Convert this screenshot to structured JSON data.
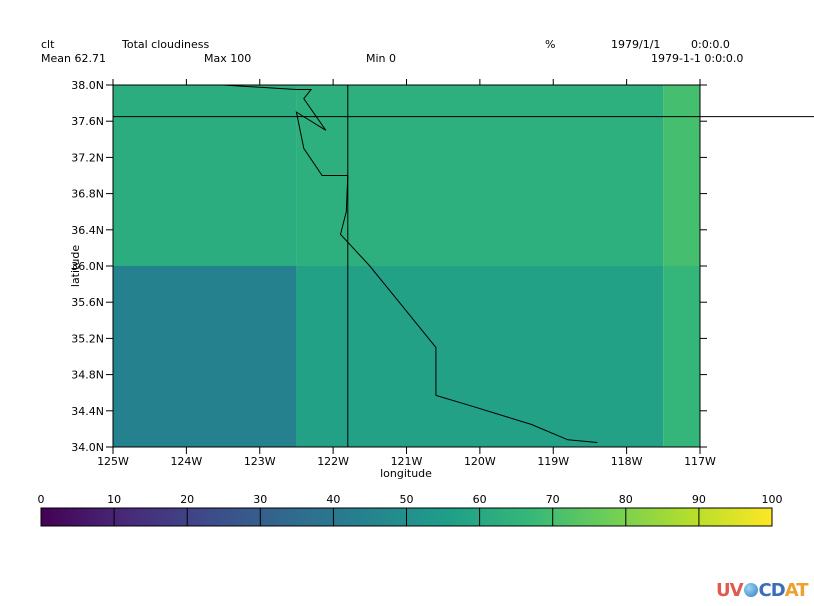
{
  "header": {
    "variable": "clt",
    "long_name": "Total cloudiness",
    "units": "%",
    "date": "1979/1/1",
    "time": "0:0:0.0",
    "datetime": "1979-1-1 0:0:0.0",
    "mean_label": "Mean 62.71",
    "max_label": "Max 100",
    "min_label": "Min 0"
  },
  "chart_data": {
    "type": "heatmap",
    "xlabel": "longitude",
    "ylabel": "latitude",
    "xlim": [
      -125,
      -117
    ],
    "ylim": [
      34,
      38
    ],
    "x_ticks": [
      -125,
      -124,
      -123,
      -122,
      -121,
      -120,
      -119,
      -118,
      -117
    ],
    "x_tick_labels": [
      "125W",
      "124W",
      "123W",
      "122W",
      "121W",
      "120W",
      "119W",
      "118W",
      "117W"
    ],
    "y_ticks": [
      34.0,
      34.4,
      34.8,
      35.2,
      35.6,
      36.0,
      36.4,
      36.8,
      37.2,
      37.6,
      38.0
    ],
    "y_tick_labels": [
      "34.0N",
      "34.4N",
      "34.8N",
      "35.2N",
      "35.6N",
      "36.0N",
      "36.4N",
      "36.8N",
      "37.2N",
      "37.6N",
      "38.0N"
    ],
    "cells": [
      {
        "lon": [
          -125,
          -122.5
        ],
        "lat": [
          34,
          36
        ],
        "value": 44
      },
      {
        "lon": [
          -122.5,
          -117.5
        ],
        "lat": [
          34,
          36
        ],
        "value": 57
      },
      {
        "lon": [
          -117.5,
          -117
        ],
        "lat": [
          34,
          36
        ],
        "value": 66
      },
      {
        "lon": [
          -125,
          -122.5
        ],
        "lat": [
          36,
          38
        ],
        "value": 62
      },
      {
        "lon": [
          -122.5,
          -117.5
        ],
        "lat": [
          36,
          38
        ],
        "value": 63
      },
      {
        "lon": [
          -117.5,
          -117
        ],
        "lat": [
          36,
          38
        ],
        "value": 70
      }
    ],
    "colorbar": {
      "min": 0,
      "max": 100,
      "ticks": [
        0,
        10,
        20,
        30,
        40,
        50,
        60,
        70,
        80,
        90,
        100
      ],
      "tick_labels": [
        "0",
        "10",
        "20",
        "30",
        "40",
        "50",
        "60",
        "70",
        "80",
        "90",
        "100"
      ],
      "colors": [
        "#440154",
        "#482878",
        "#3e4989",
        "#31688e",
        "#26828e",
        "#1f9e89",
        "#35b779",
        "#6ece58",
        "#b5de2b",
        "#fde725"
      ]
    },
    "reference_lines": {
      "lon": -121.8,
      "lat": 37.65
    },
    "coastline": [
      [
        -123.5,
        38.0
      ],
      [
        -122.5,
        37.95
      ],
      [
        -122.3,
        37.95
      ],
      [
        -122.4,
        37.85
      ],
      [
        -122.1,
        37.5
      ],
      [
        -122.5,
        37.7
      ],
      [
        -122.4,
        37.3
      ],
      [
        -122.15,
        37.0
      ],
      [
        -121.8,
        37.0
      ],
      [
        -121.82,
        36.6
      ],
      [
        -121.9,
        36.35
      ],
      [
        -121.5,
        36.0
      ],
      [
        -121.1,
        35.6
      ],
      [
        -120.6,
        35.1
      ],
      [
        -120.6,
        34.57
      ],
      [
        -120.1,
        34.45
      ],
      [
        -119.3,
        34.25
      ],
      [
        -118.8,
        34.08
      ],
      [
        -118.4,
        34.05
      ]
    ]
  },
  "logo": {
    "part1": "UV",
    "part2": "CD",
    "part3": "AT"
  }
}
